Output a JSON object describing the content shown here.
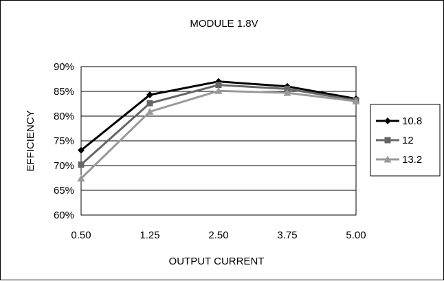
{
  "chart_data": {
    "type": "line",
    "title": "MODULE 1.8V",
    "xlabel": "OUTPUT CURRENT",
    "ylabel": "EFFICIENCY",
    "categories": [
      "0.50",
      "1.25",
      "2.50",
      "3.75",
      "5.00"
    ],
    "y_ticks": [
      "60%",
      "65%",
      "70%",
      "75%",
      "80%",
      "85%",
      "90%"
    ],
    "ylim": [
      0.6,
      0.9
    ],
    "grid": "horizontal",
    "legend_position": "right",
    "series": [
      {
        "name": "10.8",
        "values": [
          0.731,
          0.843,
          0.87,
          0.86,
          0.835
        ],
        "color": "#000000",
        "marker": "diamond"
      },
      {
        "name": "12",
        "values": [
          0.702,
          0.826,
          0.863,
          0.855,
          0.832
        ],
        "color": "#666666",
        "marker": "square"
      },
      {
        "name": "13.2",
        "values": [
          0.674,
          0.809,
          0.851,
          0.847,
          0.83
        ],
        "color": "#999999",
        "marker": "triangle"
      }
    ]
  }
}
